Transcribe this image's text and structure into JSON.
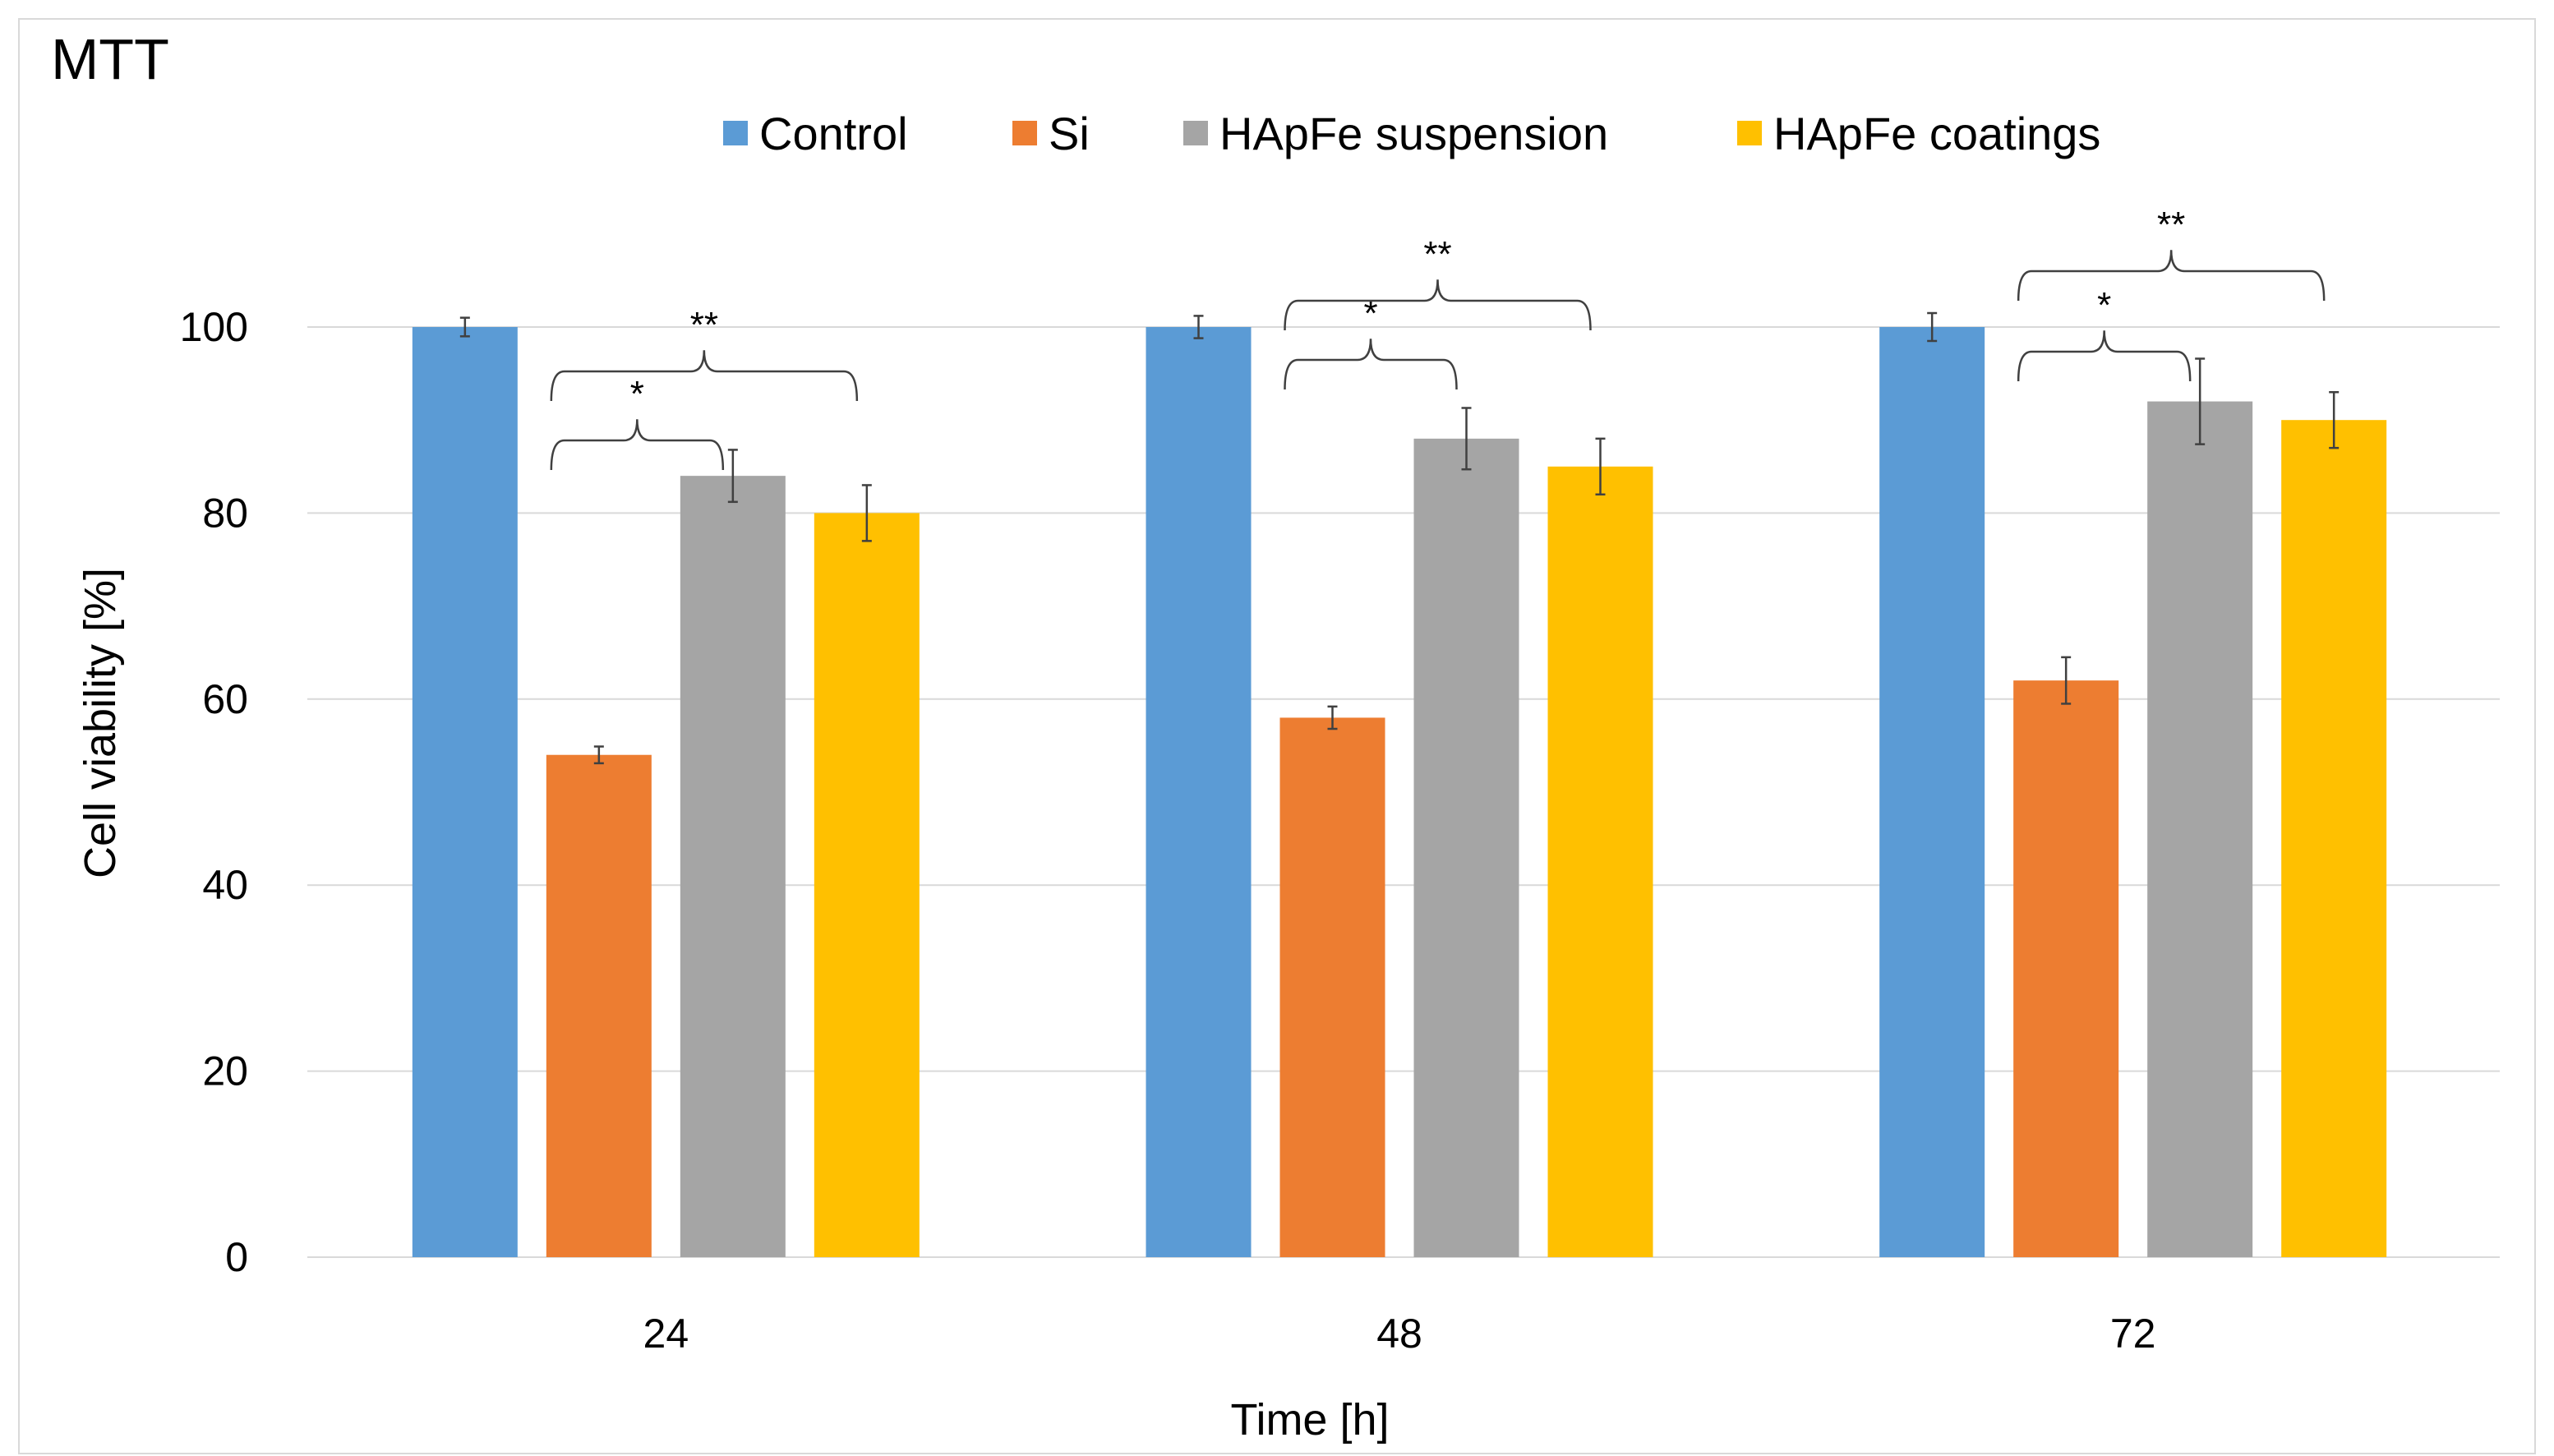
{
  "chart_data": {
    "type": "bar",
    "title": "MTT",
    "xlabel": "Time [h]",
    "ylabel": "Cell viability  [%]",
    "ylim": [
      0,
      100
    ],
    "yticks": [
      0,
      20,
      40,
      60,
      80,
      100
    ],
    "categories": [
      "24",
      "48",
      "72"
    ],
    "legend_position": "top",
    "grid": true,
    "series": [
      {
        "name": "Control",
        "color": "#5B9BD5",
        "values": [
          100,
          100,
          100
        ],
        "errors": [
          1,
          1.2,
          1.5
        ]
      },
      {
        "name": "Si",
        "color": "#ED7D31",
        "values": [
          54,
          58,
          62
        ],
        "errors": [
          0.9,
          1.2,
          2.5
        ]
      },
      {
        "name": "HApFe suspension",
        "color": "#A5A5A5",
        "values": [
          84,
          88,
          92
        ],
        "errors": [
          2.8,
          3.3,
          4.6
        ]
      },
      {
        "name": "HApFe coatings",
        "color": "#FFC000",
        "values": [
          80,
          85,
          90
        ],
        "errors": [
          3.0,
          3.0,
          3.0
        ]
      }
    ],
    "significance": [
      {
        "category": "24",
        "from": "Si",
        "to": "HApFe suspension",
        "label": "*"
      },
      {
        "category": "24",
        "from": "Si",
        "to": "HApFe coatings",
        "label": "**"
      },
      {
        "category": "48",
        "from": "Si",
        "to": "HApFe suspension",
        "label": "*"
      },
      {
        "category": "48",
        "from": "Si",
        "to": "HApFe coatings",
        "label": "**"
      },
      {
        "category": "72",
        "from": "Si",
        "to": "HApFe suspension",
        "label": "*"
      },
      {
        "category": "72",
        "from": "Si",
        "to": "HApFe coatings",
        "label": "**"
      }
    ]
  }
}
